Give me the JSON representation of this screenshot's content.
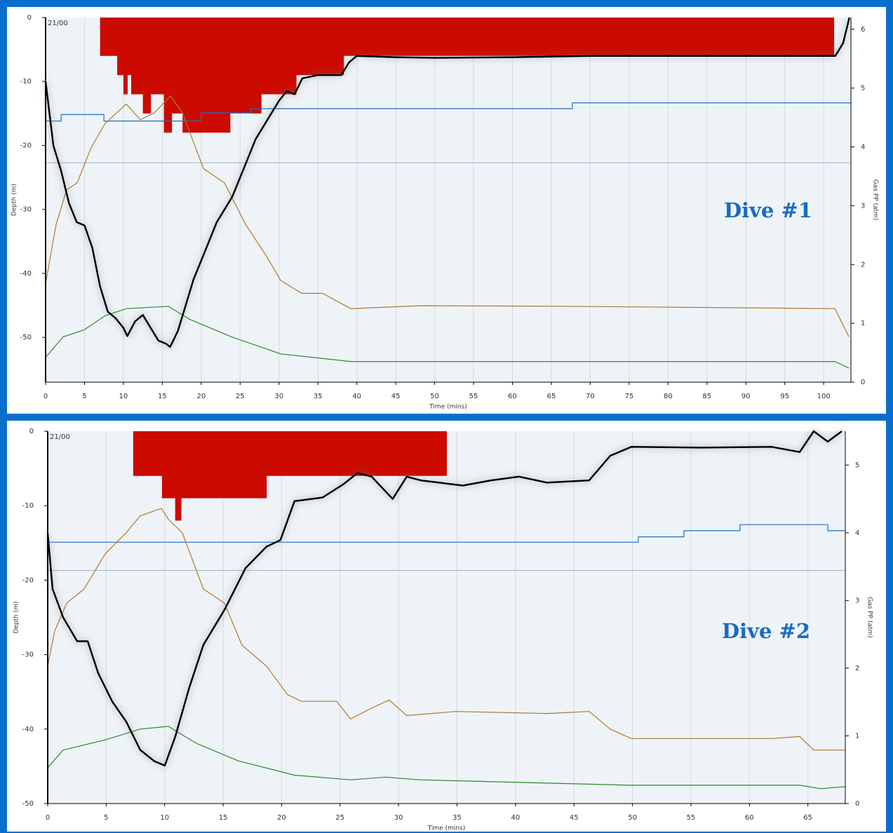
{
  "chart_data": [
    {
      "type": "line",
      "annotation": "Dive #1",
      "corner_label": "21/00",
      "x_label": "Time (mins)",
      "y_label": "Depth (m)",
      "y2_label": "Gas PP (atm)",
      "xlim": [
        0,
        103.5
      ],
      "ylim": [
        -57,
        0
      ],
      "y2lim": [
        0,
        6.2
      ],
      "xticks": [
        0,
        5,
        10,
        15,
        20,
        25,
        30,
        35,
        40,
        45,
        50,
        55,
        60,
        65,
        70,
        75,
        80,
        85,
        90,
        95,
        100
      ],
      "yticks": [
        0,
        -10,
        -20,
        -30,
        -40,
        -50
      ],
      "y2ticks": [
        0,
        1,
        2,
        3,
        4,
        5,
        6
      ],
      "grid": true,
      "reference_line": -22.7,
      "series": [
        {
          "kind": "step-area",
          "color": "#cc0a00",
          "x": [
            7.0,
            9.2,
            10.0,
            10.5,
            11.0,
            12.5,
            13.5,
            15.2,
            16.2,
            17.6,
            23.7,
            27.7,
            32.2,
            38.3,
            101.3
          ],
          "values": [
            -6,
            -9,
            -12,
            -9,
            -12,
            -15,
            -12,
            -18,
            -15,
            -18,
            -15,
            -12,
            -9,
            -6,
            0
          ]
        },
        {
          "kind": "line",
          "axis": "y2",
          "color": "#1f6fc4",
          "x": [
            0,
            2,
            2,
            7.5,
            7.5,
            20,
            20,
            26.4,
            26.4,
            67.7,
            67.7,
            103.5
          ],
          "values": [
            4.44,
            4.44,
            4.55,
            4.55,
            4.44,
            4.44,
            4.58,
            4.58,
            4.65,
            4.65,
            4.75,
            4.75
          ]
        },
        {
          "kind": "line",
          "axis": "y2",
          "color": "#b07a2a",
          "x": [
            0,
            1.35,
            2.7,
            4.06,
            5.86,
            7.66,
            10.37,
            12.17,
            13.98,
            16.05,
            17.58,
            20.29,
            22.99,
            25.7,
            28.4,
            30.21,
            32.91,
            35.62,
            39.22,
            48.24,
            66.28,
            84.31,
            101.44,
            103.25
          ],
          "values": [
            1.67,
            2.68,
            3.27,
            3.39,
            3.99,
            4.4,
            4.73,
            4.46,
            4.58,
            4.87,
            4.58,
            3.63,
            3.39,
            2.68,
            2.14,
            1.73,
            1.51,
            1.51,
            1.25,
            1.3,
            1.29,
            1.27,
            1.25,
            0.77
          ]
        },
        {
          "kind": "line",
          "axis": "y2",
          "color": "#2c8a2c",
          "x": [
            0,
            2.25,
            4.96,
            7.66,
            10.37,
            15.78,
            18.49,
            23.9,
            30.21,
            39.22,
            66.28,
            101.44,
            103.25
          ],
          "values": [
            0.42,
            0.77,
            0.89,
            1.13,
            1.25,
            1.29,
            1.07,
            0.77,
            0.48,
            0.35,
            0.35,
            0.35,
            0.24
          ]
        },
        {
          "kind": "depth",
          "color": "#000000",
          "x": [
            0,
            1,
            2,
            3,
            4,
            5,
            6,
            7,
            8,
            9,
            10,
            10.5,
            11.5,
            12.5,
            13.5,
            14.5,
            15.5,
            16,
            17,
            18,
            19,
            20,
            21,
            22,
            23,
            24,
            25,
            26,
            27,
            28,
            29,
            30,
            31,
            32,
            33,
            35,
            38,
            39,
            40,
            45,
            50,
            60,
            70,
            80,
            90,
            100,
            101.5,
            102.5,
            103.3
          ],
          "values": [
            -10,
            -20,
            -24,
            -29,
            -32,
            -32.5,
            -36,
            -42,
            -46,
            -47,
            -48.5,
            -49.8,
            -47.5,
            -46.5,
            -48.5,
            -50.5,
            -51,
            -51.5,
            -49,
            -45,
            -41,
            -38,
            -35,
            -32,
            -30,
            -28,
            -25,
            -22,
            -19,
            -17,
            -15,
            -13,
            -11.5,
            -12,
            -9.5,
            -9,
            -9,
            -7,
            -6,
            -6.2,
            -6.3,
            -6.2,
            -6,
            -6,
            -6,
            -6,
            -6,
            -4,
            0
          ]
        }
      ]
    },
    {
      "type": "line",
      "annotation": "Dive #2",
      "corner_label": "21/00",
      "x_label": "Time (mins)",
      "y_label": "Depth (m)",
      "y2_label": "Gas PP (atm)",
      "xlim": [
        0,
        68.2
      ],
      "ylim": [
        -50,
        0
      ],
      "y2lim": [
        0,
        5.5
      ],
      "xticks": [
        0,
        5,
        10,
        15,
        20,
        25,
        30,
        35,
        40,
        45,
        50,
        55,
        60,
        65
      ],
      "yticks": [
        0,
        -10,
        -20,
        -30,
        -40,
        -50
      ],
      "y2ticks": [
        0,
        1,
        2,
        3,
        4,
        5
      ],
      "grid": true,
      "reference_line": -18.7,
      "series": [
        {
          "kind": "step-area",
          "color": "#cc0a00",
          "x": [
            7.31,
            9.77,
            10.9,
            11.4,
            18.7,
            34.1
          ],
          "values": [
            -6,
            -9,
            -12,
            -9,
            -6,
            0
          ]
        },
        {
          "kind": "line",
          "axis": "y2",
          "color": "#1f6fc4",
          "x": [
            0,
            50.5,
            50.5,
            54.4,
            54.4,
            59.2,
            59.2,
            66.7,
            66.7,
            68.2
          ],
          "values": [
            3.86,
            3.86,
            3.94,
            3.94,
            4.03,
            4.03,
            4.12,
            4.12,
            4.03,
            4.03
          ]
        },
        {
          "kind": "line",
          "axis": "y2",
          "color": "#b07a2a",
          "x": [
            0,
            0.6,
            1.62,
            3.12,
            4.92,
            6.71,
            7.91,
            9.71,
            10.31,
            11.51,
            13.31,
            15.11,
            16.61,
            18.71,
            20.5,
            21.7,
            24.7,
            25.9,
            27.7,
            29.2,
            30.7,
            34.9,
            42.7,
            46.3,
            48.1,
            49.9,
            61.9,
            64.3,
            65.5,
            68.2
          ],
          "values": [
            2.03,
            2.55,
            2.96,
            3.17,
            3.69,
            4.0,
            4.25,
            4.36,
            4.2,
            4.0,
            3.17,
            2.96,
            2.34,
            2.03,
            1.61,
            1.51,
            1.51,
            1.25,
            1.41,
            1.53,
            1.3,
            1.36,
            1.33,
            1.36,
            1.1,
            0.96,
            0.96,
            0.99,
            0.79,
            0.79
          ]
        },
        {
          "kind": "line",
          "axis": "y2",
          "color": "#2c8a2c",
          "x": [
            0,
            1.32,
            4.92,
            7.91,
            10.31,
            12.71,
            16.31,
            21.1,
            25.9,
            28.9,
            31.9,
            49.9,
            64.3,
            66.1,
            68.2
          ],
          "values": [
            0.53,
            0.79,
            0.94,
            1.1,
            1.14,
            0.89,
            0.63,
            0.42,
            0.35,
            0.39,
            0.35,
            0.27,
            0.27,
            0.22,
            0.25
          ]
        },
        {
          "kind": "depth",
          "color": "#000000",
          "x": [
            0,
            0.42,
            1.32,
            2.52,
            3.42,
            4.32,
            5.52,
            6.71,
            7.91,
            9.11,
            10.01,
            10.91,
            12.11,
            13.31,
            15.11,
            16.91,
            18.71,
            19.9,
            21.1,
            23.5,
            25.3,
            26.5,
            27.7,
            29.5,
            30.7,
            31.9,
            35.5,
            37.9,
            40.3,
            42.7,
            46.3,
            48.1,
            49.9,
            55.9,
            61.9,
            64.3,
            65.5,
            66.7,
            67.9
          ],
          "values": [
            -13.7,
            -21.2,
            -25,
            -28.2,
            -28.2,
            -32.5,
            -36.3,
            -39,
            -42.8,
            -44.3,
            -44.9,
            -41,
            -34.4,
            -28.7,
            -24,
            -18.4,
            -15.5,
            -14.6,
            -9.4,
            -8.9,
            -7.1,
            -5.6,
            -6.1,
            -9.1,
            -6.1,
            -6.6,
            -7.3,
            -6.6,
            -6.1,
            -6.9,
            -6.6,
            -3.3,
            -2.1,
            -2.2,
            -2.1,
            -2.8,
            0,
            -1.4,
            0
          ]
        }
      ]
    }
  ]
}
